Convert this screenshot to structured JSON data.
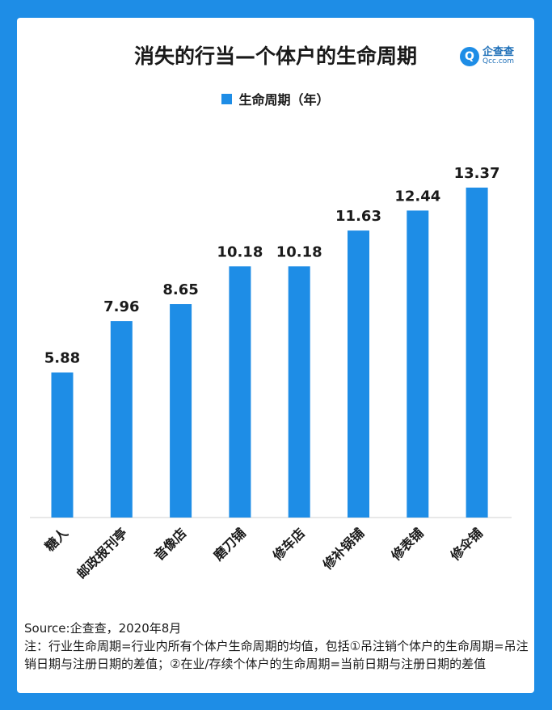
{
  "header": {
    "title": "消失的行当—个体户的生命周期",
    "logo_name": "企查查",
    "logo_sub": "Qcc.com"
  },
  "legend": {
    "label": "生命周期（年）"
  },
  "footer": {
    "source": "Source:企查查，2020年8月",
    "note": "注：行业生命周期=行业内所有个体户生命周期的均值，包括①吊注销个体户的生命周期=吊注销日期与注册日期的差值；②在业/存续个体户的生命周期=当前日期与注册日期的差值"
  },
  "colors": {
    "bar": "#1e8de6",
    "background": "#1e8de6"
  },
  "chart_data": {
    "type": "bar",
    "title": "消失的行当—个体户的生命周期",
    "categories": [
      "糖人",
      "邮政报刊亭",
      "音像店",
      "磨刀铺",
      "修车店",
      "修补锅铺",
      "修表铺",
      "修伞铺"
    ],
    "series": [
      {
        "name": "生命周期（年）",
        "values": [
          5.88,
          7.96,
          8.65,
          10.18,
          10.18,
          11.63,
          12.44,
          13.37
        ]
      }
    ],
    "ylim": [
      0,
      13.37
    ],
    "grid": false,
    "legend_position": "top-center"
  }
}
